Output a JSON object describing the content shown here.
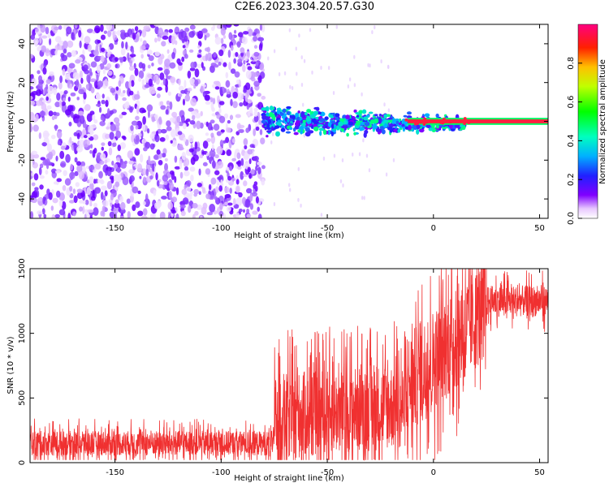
{
  "title": "C2E6.2023.304.20.57.G30",
  "colors": {
    "snr_line": "#f03030",
    "axis": "#000000",
    "background": "#ffffff"
  },
  "chart_data": [
    {
      "type": "heatmap",
      "name": "spectrogram",
      "xlabel": "Height of straight line (km)",
      "ylabel": "Frequency (Hz)",
      "xlim": [
        -190,
        54
      ],
      "ylim": [
        -50,
        50
      ],
      "xticks": [
        -150,
        -100,
        -50,
        0,
        50
      ],
      "yticks": [
        -40,
        -20,
        0,
        20,
        40
      ],
      "noise_region_x": [
        -190,
        -80
      ],
      "signal_band": {
        "x": [
          -80,
          54
        ],
        "center_hz": 0,
        "spread_hz": [
          6,
          1
        ]
      },
      "colorbar": {
        "label": "Normalized spectral amplitude",
        "range": [
          0,
          1
        ],
        "ticks": [
          0.0,
          0.2,
          0.4,
          0.6,
          0.8
        ]
      }
    },
    {
      "type": "line",
      "name": "snr",
      "xlabel": "Height of straight line (km)",
      "ylabel": "SNR (10 * v/v)",
      "xlim": [
        -190,
        54
      ],
      "ylim": [
        0,
        1500
      ],
      "xticks": [
        -150,
        -100,
        -50,
        0,
        50
      ],
      "yticks": [
        0,
        500,
        1000,
        1500
      ],
      "segments": [
        {
          "x": [
            -190,
            -75
          ],
          "mean": 150,
          "spread": 120
        },
        {
          "x": [
            -75,
            -12
          ],
          "mean": 400,
          "spread": 420
        },
        {
          "x": [
            -12,
            25
          ],
          "mean": 800,
          "spread": 500
        },
        {
          "x": [
            25,
            54
          ],
          "mean": 1250,
          "spread": 150
        }
      ]
    }
  ]
}
